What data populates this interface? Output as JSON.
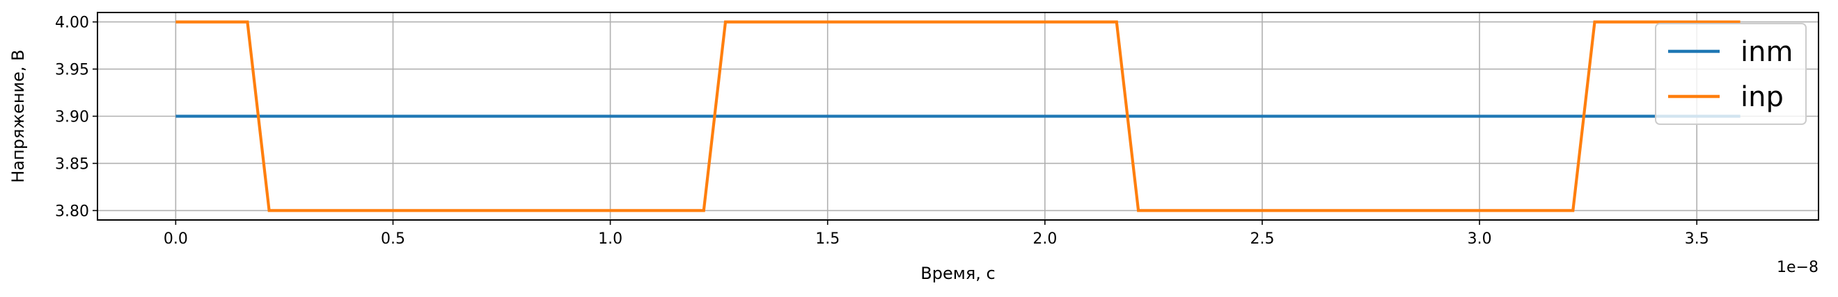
{
  "chart_data": {
    "type": "line",
    "xlabel": "Время, с",
    "ylabel": "Напряжение, В",
    "x_offset_text": "1e−8",
    "xlim": [
      -0.18,
      3.78
    ],
    "ylim": [
      3.79,
      4.01
    ],
    "xticks": [
      0.0,
      0.5,
      1.0,
      1.5,
      2.0,
      2.5,
      3.0,
      3.5
    ],
    "xtick_labels": [
      "0.0",
      "0.5",
      "1.0",
      "1.5",
      "2.0",
      "2.5",
      "3.0",
      "3.5"
    ],
    "yticks": [
      3.8,
      3.85,
      3.9,
      3.95,
      4.0
    ],
    "ytick_labels": [
      "3.80",
      "3.85",
      "3.90",
      "3.95",
      "4.00"
    ],
    "grid": true,
    "legend_position": "top-right",
    "series": [
      {
        "name": "inm",
        "color": "#1f77b4",
        "x": [
          0.0,
          3.6
        ],
        "y": [
          3.9,
          3.9
        ]
      },
      {
        "name": "inp",
        "color": "#ff7f0e",
        "x": [
          0.0,
          0.165,
          0.215,
          1.215,
          1.265,
          2.165,
          2.215,
          3.215,
          3.265,
          3.6
        ],
        "y": [
          4.0,
          4.0,
          3.8,
          3.8,
          4.0,
          4.0,
          3.8,
          3.8,
          4.0,
          4.0
        ]
      }
    ]
  }
}
